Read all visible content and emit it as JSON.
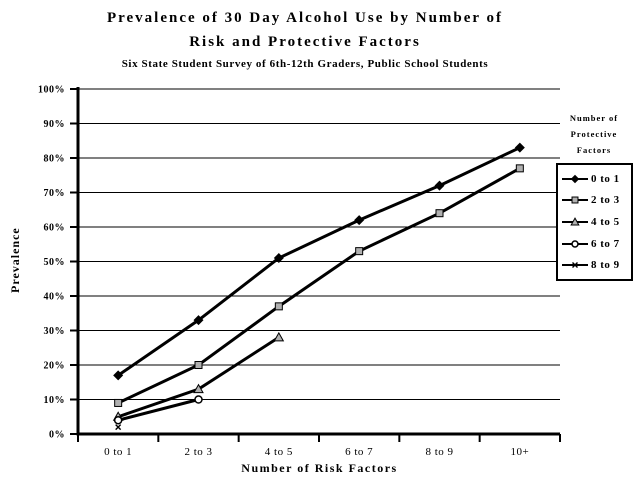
{
  "title": {
    "line1": "Prevalence of 30 Day Alcohol Use by Number of",
    "line2": "Risk and Protective Factors",
    "subtitle": "Six State Student Survey of 6th-12th Graders, Public School Students"
  },
  "chart_data": {
    "type": "line",
    "title": "Prevalence of 30 Day Alcohol Use by Number of Risk and Protective Factors",
    "subtitle": "Six State Student Survey of 6th-12th Graders, Public School Students",
    "xlabel": "Number of Risk Factors",
    "ylabel": "Prevalence",
    "categories": [
      "0 to 1",
      "2 to 3",
      "4 to 5",
      "6 to 7",
      "8 to 9",
      "10+"
    ],
    "y_ticks": [
      "0%",
      "10%",
      "20%",
      "30%",
      "40%",
      "50%",
      "60%",
      "70%",
      "80%",
      "90%",
      "100%"
    ],
    "ylim": [
      0,
      100
    ],
    "grid": true,
    "legend_position": "right",
    "legend_title_lines": [
      "Number of",
      "Protective",
      "Factors"
    ],
    "series": [
      {
        "name": "0 to 1",
        "marker": "diamond-filled",
        "values": [
          17,
          33,
          51,
          62,
          72,
          83
        ]
      },
      {
        "name": "2 to 3",
        "marker": "square-gray",
        "values": [
          9,
          20,
          37,
          53,
          64,
          77
        ]
      },
      {
        "name": "4 to 5",
        "marker": "triangle-gray",
        "values": [
          5,
          13,
          28,
          null,
          null,
          null
        ]
      },
      {
        "name": "6 to 7",
        "marker": "circle-open",
        "values": [
          4,
          10,
          null,
          null,
          null,
          null
        ]
      },
      {
        "name": "8 to 9",
        "marker": "x-cross",
        "values": [
          2,
          null,
          null,
          null,
          null,
          null
        ]
      }
    ],
    "colors": {
      "line": "#000000",
      "grid": "#000000",
      "marker_gray_fill": "#b0b0b0",
      "background": "#ffffff"
    }
  }
}
